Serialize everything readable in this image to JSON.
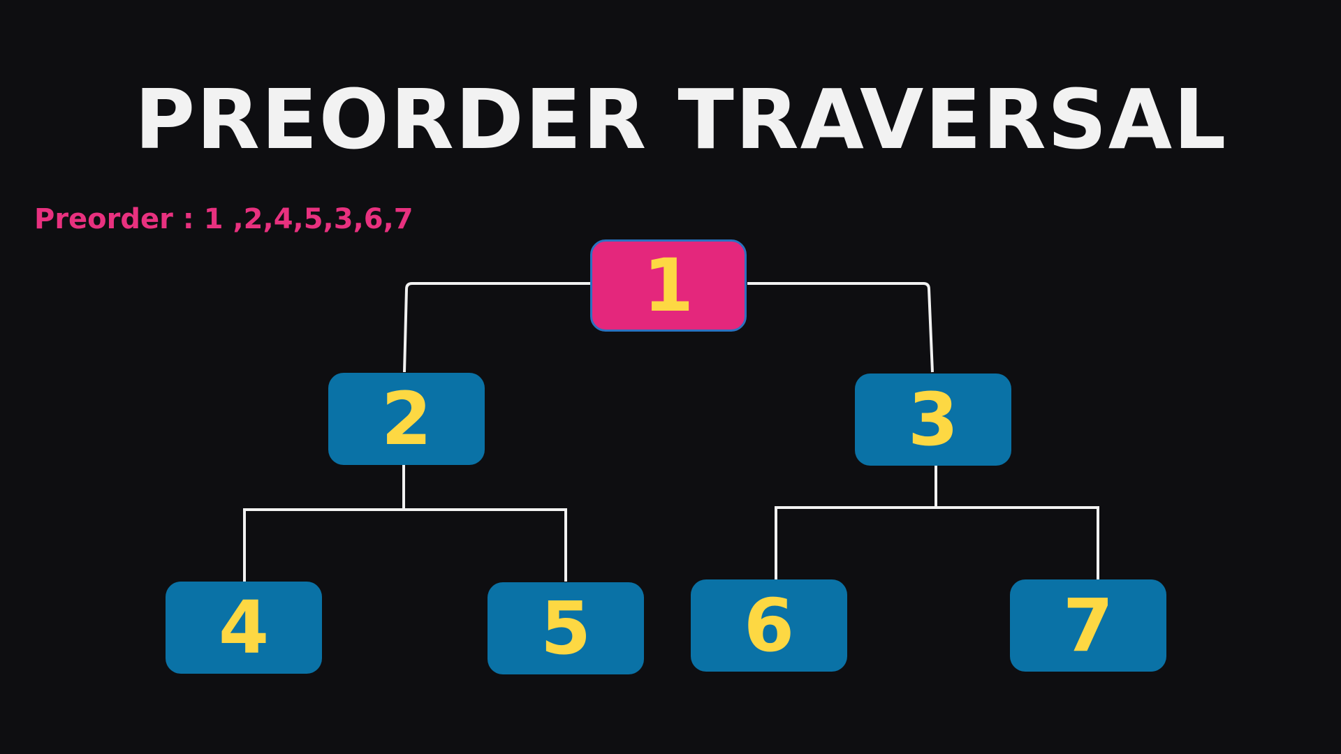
{
  "title": "PREORDER TRAVERSAL",
  "sequence": "Preorder : 1 ,2,4,5,3,6,7",
  "colors": {
    "background": "#0e0e11",
    "title": "#f2f2f2",
    "sequence_text": "#e8317f",
    "node_fill": "#0a72a6",
    "node_active_fill": "#e4277c",
    "node_label": "#fdd843",
    "edge": "#f2f2f2"
  },
  "tree": {
    "nodes": [
      {
        "id": "n1",
        "label": "1",
        "active": true
      },
      {
        "id": "n2",
        "label": "2",
        "active": false
      },
      {
        "id": "n3",
        "label": "3",
        "active": false
      },
      {
        "id": "n4",
        "label": "4",
        "active": false
      },
      {
        "id": "n5",
        "label": "5",
        "active": false
      },
      {
        "id": "n6",
        "label": "6",
        "active": false
      },
      {
        "id": "n7",
        "label": "7",
        "active": false
      }
    ],
    "edges": [
      {
        "from": "n1",
        "to": "n2"
      },
      {
        "from": "n1",
        "to": "n3"
      },
      {
        "from": "n2",
        "to": "n4"
      },
      {
        "from": "n2",
        "to": "n5"
      },
      {
        "from": "n3",
        "to": "n6"
      },
      {
        "from": "n3",
        "to": "n7"
      }
    ]
  }
}
